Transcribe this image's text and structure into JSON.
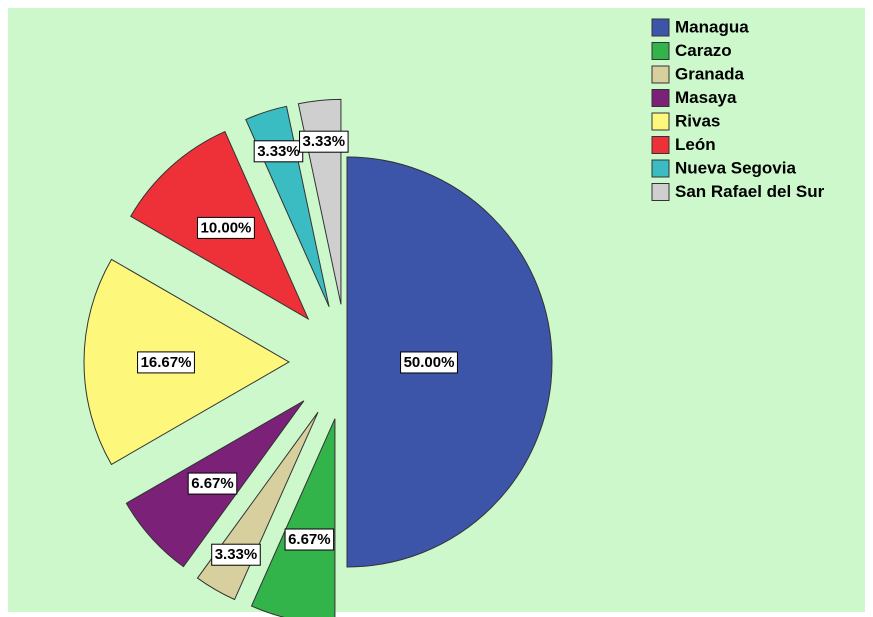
{
  "chart_data": {
    "type": "pie",
    "categories": [
      "Managua",
      "Carazo",
      "Granada",
      "Masaya",
      "Rivas",
      "León",
      "Nueva Segovia",
      "San Rafael del Sur"
    ],
    "values": [
      50.0,
      6.67,
      3.33,
      6.67,
      16.67,
      10.0,
      3.33,
      3.33
    ],
    "value_labels": [
      "50.00%",
      "6.67%",
      "3.33%",
      "6.67%",
      "16.67%",
      "10.00%",
      "3.33%",
      "3.33%"
    ],
    "colors": [
      "#3d55a9",
      "#33b44a",
      "#d7cf9e",
      "#7b2278",
      "#fdf77c",
      "#ee3139",
      "#3bbcc2",
      "#cfcfcf"
    ]
  }
}
